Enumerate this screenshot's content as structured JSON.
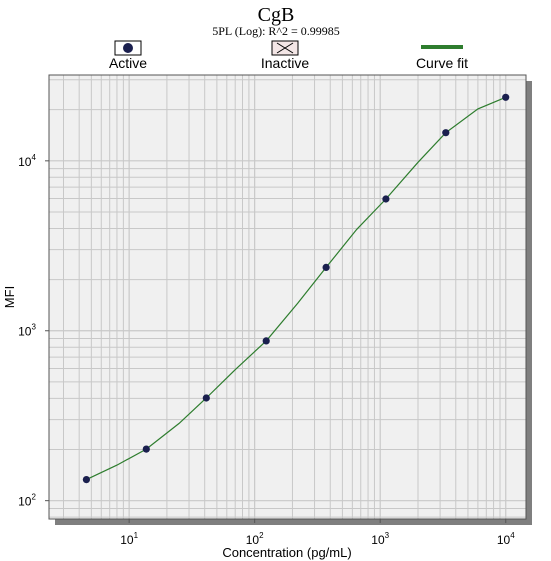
{
  "chart_data": {
    "type": "scatter",
    "title": "CgB",
    "subtitle": "5PL (Log): R^2 = 0.99985",
    "xlabel": "Concentration (pg/mL)",
    "ylabel": "MFI",
    "xscale": "log",
    "yscale": "log",
    "xlim": [
      2.3,
      14500
    ],
    "ylim": [
      78,
      32000
    ],
    "grid": true,
    "legend": {
      "position": "top",
      "entries": [
        "Active",
        "Inactive",
        "Curve fit"
      ]
    },
    "x_ticks": [
      {
        "base": "10",
        "exp": "1",
        "value": 10
      },
      {
        "base": "10",
        "exp": "2",
        "value": 100
      },
      {
        "base": "10",
        "exp": "3",
        "value": 1000
      },
      {
        "base": "10",
        "exp": "4",
        "value": 10000
      }
    ],
    "y_ticks": [
      {
        "base": "10",
        "exp": "2",
        "value": 100
      },
      {
        "base": "10",
        "exp": "3",
        "value": 1000
      },
      {
        "base": "10",
        "exp": "4",
        "value": 10000
      }
    ],
    "series": [
      {
        "name": "Active",
        "x": [
          4.57,
          13.7,
          41.2,
          123.5,
          370.4,
          1111,
          3333,
          10000
        ],
        "y": [
          133,
          201,
          402,
          872,
          2360,
          5960,
          14650,
          23650
        ]
      }
    ],
    "curve_fit": {
      "name": "Curve fit",
      "x": [
        4.57,
        8,
        13.7,
        25,
        41.2,
        70,
        123.5,
        220,
        370.4,
        650,
        1111,
        2000,
        3333,
        6000,
        10000
      ],
      "y": [
        133,
        162,
        201,
        285,
        402,
        590,
        872,
        1450,
        2360,
        3950,
        5960,
        9800,
        14650,
        20200,
        23650
      ]
    }
  },
  "colors": {
    "marker": "#1a1f4e",
    "curve": "#2e7d2e",
    "plot_bg": "#f0f0f0",
    "grid": "#c8c8c8",
    "shadow": "#7f7f7f"
  }
}
